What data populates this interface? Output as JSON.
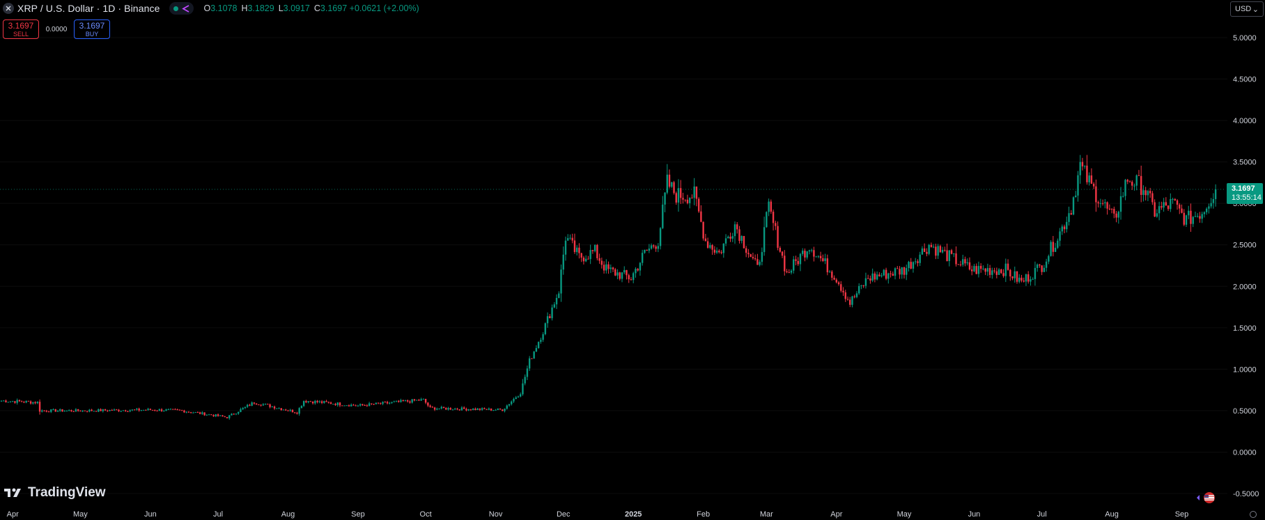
{
  "header": {
    "title": "XRP / U.S. Dollar · 1D · Binance",
    "ohlc": [
      {
        "key": "O",
        "value": "3.1078"
      },
      {
        "key": "H",
        "value": "3.1829"
      },
      {
        "key": "L",
        "value": "3.0917"
      },
      {
        "key": "C",
        "value": "3.1697"
      }
    ],
    "change": "+0.0621 (+2.00%)"
  },
  "trade": {
    "sell_price": "3.1697",
    "sell_label": "SELL",
    "spread": "0.0000",
    "buy_price": "3.1697",
    "buy_label": "BUY"
  },
  "currency": "USD",
  "brand": "TradingView",
  "last_price": {
    "price": "3.1697",
    "countdown": "13:55:14",
    "value": 3.1697
  },
  "colors": {
    "up": "#089981",
    "down": "#f23645",
    "background": "#000000",
    "text": "#d1d4dc"
  },
  "icons": [
    "close-icon",
    "share-icon",
    "chevron-down-icon",
    "tradingview-logo-icon",
    "flag-icon",
    "settings-icon"
  ],
  "chart_data": {
    "type": "candlestick",
    "ylim": [
      -0.5,
      5.0
    ],
    "yticks": [
      "5.0000",
      "4.5000",
      "4.0000",
      "3.5000",
      "3.0000",
      "2.5000",
      "2.0000",
      "1.5000",
      "1.0000",
      "0.5000",
      "0.0000",
      "-0.5000"
    ],
    "ytick_values": [
      5.0,
      4.5,
      4.0,
      3.5,
      3.0,
      2.5,
      2.0,
      1.5,
      1.0,
      0.5,
      0.0,
      -0.5
    ],
    "xticks": [
      "Apr",
      "May",
      "Jun",
      "Jul",
      "Aug",
      "Sep",
      "Oct",
      "Nov",
      "Dec",
      "2025",
      "Feb",
      "Mar",
      "Apr",
      "May",
      "Jun",
      "Jul",
      "Aug",
      "Sep"
    ],
    "start_date": "2024-03-27",
    "interval": "1D",
    "closes": [
      {
        "date": "2024-03-27",
        "close": 0.62
      },
      {
        "date": "2024-04-12",
        "close": 0.6
      },
      {
        "date": "2024-04-13",
        "close": 0.5
      },
      {
        "date": "2024-05-01",
        "close": 0.5
      },
      {
        "date": "2024-06-01",
        "close": 0.51
      },
      {
        "date": "2024-06-15",
        "close": 0.5
      },
      {
        "date": "2024-07-05",
        "close": 0.42
      },
      {
        "date": "2024-07-17",
        "close": 0.6
      },
      {
        "date": "2024-08-05",
        "close": 0.48
      },
      {
        "date": "2024-08-08",
        "close": 0.62
      },
      {
        "date": "2024-09-01",
        "close": 0.56
      },
      {
        "date": "2024-09-30",
        "close": 0.63
      },
      {
        "date": "2024-10-03",
        "close": 0.53
      },
      {
        "date": "2024-11-04",
        "close": 0.51
      },
      {
        "date": "2024-11-12",
        "close": 0.72
      },
      {
        "date": "2024-11-16",
        "close": 1.1
      },
      {
        "date": "2024-11-22",
        "close": 1.46
      },
      {
        "date": "2024-11-29",
        "close": 1.95
      },
      {
        "date": "2024-12-02",
        "close": 2.6
      },
      {
        "date": "2024-12-08",
        "close": 2.35
      },
      {
        "date": "2024-12-15",
        "close": 2.42
      },
      {
        "date": "2024-12-20",
        "close": 2.2
      },
      {
        "date": "2024-12-31",
        "close": 2.1
      },
      {
        "date": "2025-01-06",
        "close": 2.4
      },
      {
        "date": "2025-01-12",
        "close": 2.55
      },
      {
        "date": "2025-01-16",
        "close": 3.25
      },
      {
        "date": "2025-01-20",
        "close": 3.1
      },
      {
        "date": "2025-01-28",
        "close": 3.1
      },
      {
        "date": "2025-02-02",
        "close": 2.55
      },
      {
        "date": "2025-02-08",
        "close": 2.4
      },
      {
        "date": "2025-02-15",
        "close": 2.75
      },
      {
        "date": "2025-02-25",
        "close": 2.2
      },
      {
        "date": "2025-03-02",
        "close": 2.95
      },
      {
        "date": "2025-03-10",
        "close": 2.15
      },
      {
        "date": "2025-03-20",
        "close": 2.5
      },
      {
        "date": "2025-04-01",
        "close": 2.1
      },
      {
        "date": "2025-04-07",
        "close": 1.8
      },
      {
        "date": "2025-04-15",
        "close": 2.1
      },
      {
        "date": "2025-05-01",
        "close": 2.2
      },
      {
        "date": "2025-05-12",
        "close": 2.5
      },
      {
        "date": "2025-05-31",
        "close": 2.2
      },
      {
        "date": "2025-06-15",
        "close": 2.2
      },
      {
        "date": "2025-06-22",
        "close": 2.05
      },
      {
        "date": "2025-07-01",
        "close": 2.25
      },
      {
        "date": "2025-07-10",
        "close": 2.7
      },
      {
        "date": "2025-07-14",
        "close": 2.95
      },
      {
        "date": "2025-07-18",
        "close": 3.45
      },
      {
        "date": "2025-07-23",
        "close": 3.2
      },
      {
        "date": "2025-08-02",
        "close": 2.8
      },
      {
        "date": "2025-08-08",
        "close": 3.3
      },
      {
        "date": "2025-08-15",
        "close": 3.2
      },
      {
        "date": "2025-08-20",
        "close": 2.9
      },
      {
        "date": "2025-08-28",
        "close": 3.0
      },
      {
        "date": "2025-09-03",
        "close": 2.8
      },
      {
        "date": "2025-09-10",
        "close": 2.9
      },
      {
        "date": "2025-09-16",
        "close": 3.1697
      }
    ]
  }
}
